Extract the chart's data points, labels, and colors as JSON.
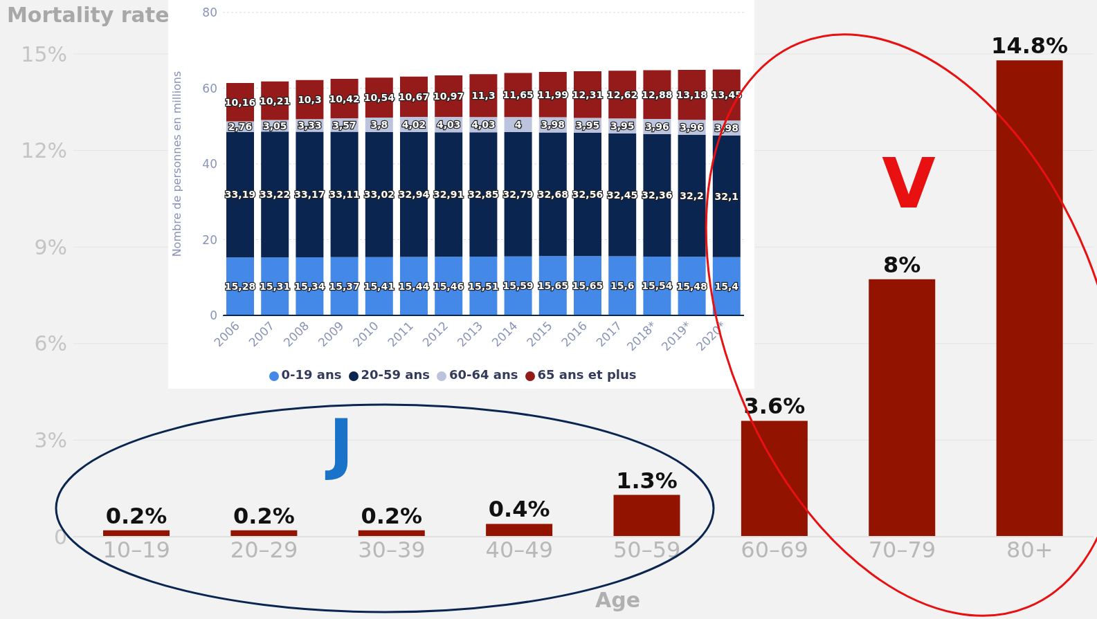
{
  "chart_data": [
    {
      "type": "bar",
      "title": "Mortality rate",
      "xlabel": "Age",
      "categories": [
        "10–19",
        "20–29",
        "30–39",
        "40–49",
        "50–59",
        "60–69",
        "70–79",
        "80+"
      ],
      "values": [
        0.2,
        0.2,
        0.2,
        0.4,
        1.3,
        3.6,
        8,
        14.8
      ],
      "color": "#921400",
      "value_labels": [
        "0.2%",
        "0.2%",
        "0.2%",
        "0.4%",
        "1.3%",
        "3.6%",
        "8%",
        "14.8%"
      ],
      "ylim": [
        0,
        15
      ],
      "yticks": [
        0,
        {
          "value": 3,
          "label": "3%"
        },
        {
          "value": 6,
          "label": "6%"
        },
        {
          "value": 9,
          "label": "9%"
        },
        {
          "value": 12,
          "label": "12%"
        },
        {
          "value": 15,
          "label": "15%"
        }
      ],
      "grid": "y",
      "annotations": [
        "J",
        "V"
      ]
    },
    {
      "type": "bar",
      "stacked": true,
      "ylabel": "Nombre de personnes en millions",
      "categories": [
        "2006",
        "2007",
        "2008",
        "2009",
        "2010",
        "2011",
        "2012",
        "2013",
        "2014",
        "2015",
        "2016",
        "2017",
        "2018*",
        "2019*",
        "2020*"
      ],
      "series": [
        {
          "name": "0-19 ans",
          "color": "#4589e8",
          "values": [
            15.28,
            15.31,
            15.34,
            15.37,
            15.41,
            15.44,
            15.46,
            15.51,
            15.59,
            15.65,
            15.65,
            15.6,
            15.54,
            15.48,
            15.4
          ],
          "value_labels": [
            "15,28",
            "15,31",
            "15,34",
            "15,37",
            "15,41",
            "15,44",
            "15,46",
            "15,51",
            "15,59",
            "15,65",
            "15,65",
            "15,6",
            "15,54",
            "15,48",
            "15,4"
          ]
        },
        {
          "name": "20-59 ans",
          "color": "#0b2551",
          "values": [
            33.19,
            33.22,
            33.17,
            33.11,
            33.02,
            32.94,
            32.91,
            32.85,
            32.79,
            32.68,
            32.56,
            32.45,
            32.36,
            32.2,
            32.1
          ],
          "value_labels": [
            "33,19",
            "33,22",
            "33,17",
            "33,11",
            "33,02",
            "32,94",
            "32,91",
            "32,85",
            "32,79",
            "32,68",
            "32,56",
            "32,45",
            "32,36",
            "32,2",
            "32,1"
          ]
        },
        {
          "name": "60-64 ans",
          "color": "#bcc3dd",
          "values": [
            2.76,
            3.05,
            3.33,
            3.57,
            3.8,
            4.02,
            4.03,
            4.03,
            4,
            3.98,
            3.95,
            3.95,
            3.96,
            3.96,
            3.98
          ],
          "value_labels": [
            "2,76",
            "3,05",
            "3,33",
            "3,57",
            "3,8",
            "4,02",
            "4,03",
            "4,03",
            "4",
            "3,98",
            "3,95",
            "3,95",
            "3,96",
            "3,96",
            "3,98"
          ]
        },
        {
          "name": "65 ans et plus",
          "color": "#951b1b",
          "values": [
            10.16,
            10.21,
            10.3,
            10.42,
            10.54,
            10.67,
            10.97,
            11.3,
            11.65,
            11.99,
            12.31,
            12.62,
            12.88,
            13.18,
            13.45
          ],
          "value_labels": [
            "10,16",
            "10,21",
            "10,3",
            "10,42",
            "10,54",
            "10,67",
            "10,97",
            "11,3",
            "11,65",
            "11,99",
            "12,31",
            "12,62",
            "12,88",
            "13,18",
            "13,45"
          ]
        }
      ],
      "ylim": [
        0,
        80
      ],
      "yticks": [
        0,
        20,
        40,
        60,
        80
      ],
      "grid": "y",
      "legend": "bottom"
    }
  ]
}
